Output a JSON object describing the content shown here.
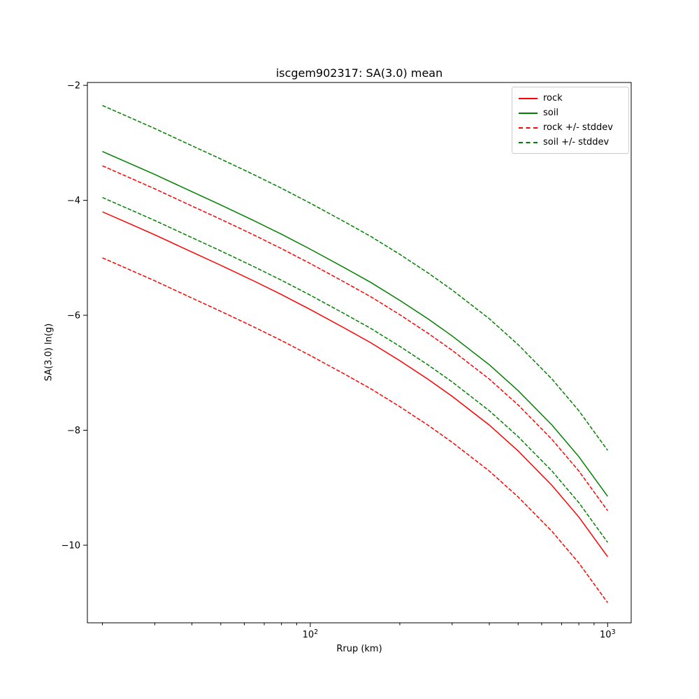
{
  "chart_data": {
    "type": "line",
    "title": "iscgem902317: SA(3.0) mean",
    "xlabel": "Rrup (km)",
    "ylabel": "SA(3.0) ln(g)",
    "x_scale": "log",
    "grid": false,
    "legend_position": "upper right",
    "xlim": [
      17.8,
      1200
    ],
    "ylim": [
      -11.35,
      -1.95
    ],
    "y_ticks": [
      {
        "value": -2,
        "label": "−2"
      },
      {
        "value": -4,
        "label": "−4"
      },
      {
        "value": -6,
        "label": "−6"
      },
      {
        "value": -8,
        "label": "−8"
      },
      {
        "value": -10,
        "label": "−10"
      }
    ],
    "x_major_ticks": [
      {
        "value": 100,
        "label_base": "10",
        "label_exp": "2"
      },
      {
        "value": 1000,
        "label_base": "10",
        "label_exp": "3"
      }
    ],
    "x_minor_ticks": [
      20,
      30,
      40,
      50,
      60,
      70,
      80,
      90,
      200,
      300,
      400,
      500,
      600,
      700,
      800,
      900
    ],
    "stddev": 0.8,
    "x": [
      20,
      25,
      30,
      40,
      50,
      65,
      80,
      100,
      130,
      160,
      200,
      250,
      300,
      400,
      500,
      650,
      800,
      1000
    ],
    "series": [
      {
        "name": "rock",
        "color": "#ff0000",
        "style": "solid",
        "values": [
          -4.2,
          -4.42,
          -4.6,
          -4.9,
          -5.13,
          -5.41,
          -5.64,
          -5.9,
          -6.22,
          -6.48,
          -6.79,
          -7.12,
          -7.41,
          -7.91,
          -8.36,
          -8.96,
          -9.51,
          -10.2
        ]
      },
      {
        "name": "soil",
        "color": "#008000",
        "style": "solid",
        "values": [
          -3.15,
          -3.37,
          -3.55,
          -3.85,
          -4.08,
          -4.36,
          -4.59,
          -4.85,
          -5.17,
          -5.43,
          -5.74,
          -6.07,
          -6.36,
          -6.86,
          -7.31,
          -7.91,
          -8.46,
          -9.15
        ]
      },
      {
        "name": "rock +/- stddev",
        "color": "#ff0000",
        "style": "dashed",
        "values_upper": [
          -3.4,
          -3.62,
          -3.8,
          -4.1,
          -4.33,
          -4.61,
          -4.84,
          -5.1,
          -5.42,
          -5.68,
          -5.99,
          -6.32,
          -6.61,
          -7.11,
          -7.56,
          -8.16,
          -8.71,
          -9.4
        ],
        "values_lower": [
          -5.0,
          -5.22,
          -5.4,
          -5.7,
          -5.93,
          -6.21,
          -6.44,
          -6.7,
          -7.02,
          -7.28,
          -7.59,
          -7.92,
          -8.21,
          -8.71,
          -9.16,
          -9.76,
          -10.31,
          -11.0
        ]
      },
      {
        "name": "soil +/- stddev",
        "color": "#008000",
        "style": "dashed",
        "values_upper": [
          -2.35,
          -2.57,
          -2.75,
          -3.05,
          -3.28,
          -3.56,
          -3.79,
          -4.05,
          -4.37,
          -4.63,
          -4.94,
          -5.27,
          -5.56,
          -6.06,
          -6.51,
          -7.11,
          -7.66,
          -8.35
        ],
        "values_lower": [
          -3.95,
          -4.17,
          -4.35,
          -4.65,
          -4.88,
          -5.16,
          -5.39,
          -5.65,
          -5.97,
          -6.23,
          -6.54,
          -6.87,
          -7.16,
          -7.66,
          -8.11,
          -8.71,
          -9.26,
          -9.95
        ]
      }
    ]
  }
}
